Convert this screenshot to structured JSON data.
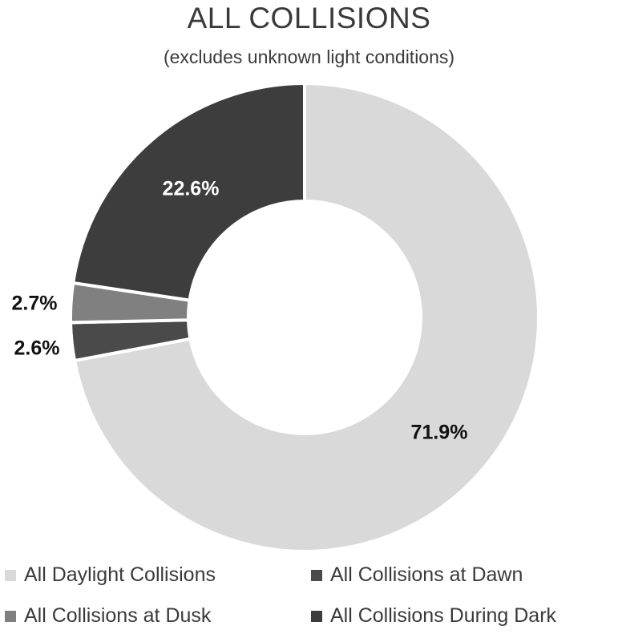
{
  "chart_data": {
    "type": "pie",
    "title": "ALL COLLISIONS",
    "subtitle": "(excludes unknown light conditions)",
    "categories": [
      "All Daylight Collisions",
      "All Collisions at Dawn",
      "All Collisions at Dusk",
      "All Collisions During Dark"
    ],
    "values": [
      71.9,
      2.6,
      2.7,
      22.6
    ],
    "data_labels": [
      "71.9%",
      "2.6%",
      "2.7%",
      "22.6%"
    ],
    "colors": [
      "#d9d9d9",
      "#4a4a4a",
      "#808080",
      "#3d3d3d"
    ],
    "label_colors": [
      "#111111",
      "#111111",
      "#111111",
      "#ffffff"
    ],
    "legend_position": "bottom",
    "donut": true
  }
}
